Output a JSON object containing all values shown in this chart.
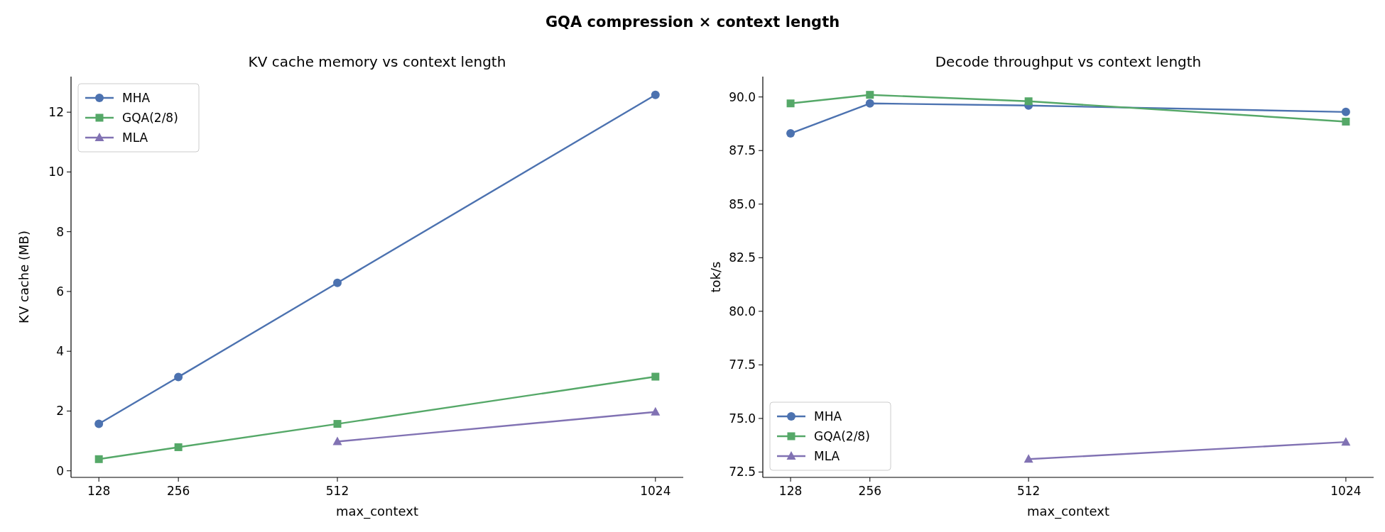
{
  "chart_data": [
    {
      "type": "line",
      "annotations": [
        "GQA compression × context length"
      ],
      "title": "KV cache memory vs context length",
      "xlabel": "max_context",
      "ylabel": "KV cache (MB)",
      "x": [
        128,
        256,
        512,
        1024
      ],
      "xlim": [
        83.2,
        1068.8
      ],
      "xticks": [
        128,
        256,
        512,
        1024
      ],
      "ylim": [
        -0.22,
        13.19
      ],
      "yticks": [
        0,
        2,
        4,
        6,
        8,
        10,
        12
      ],
      "legend": "top left",
      "grid": false,
      "series": [
        {
          "name": "MHA",
          "color": "#4c72b0",
          "marker": "circle",
          "values": [
            1.57,
            3.14,
            6.29,
            12.58
          ]
        },
        {
          "name": "GQA(2/8)",
          "color": "#55a868",
          "marker": "square",
          "values": [
            0.39,
            0.79,
            1.57,
            3.15
          ]
        },
        {
          "name": "MLA",
          "color": "#8172b3",
          "marker": "triangle",
          "values": [
            null,
            null,
            0.98,
            1.97
          ]
        }
      ]
    },
    {
      "type": "line",
      "title": "Decode throughput vs context length",
      "xlabel": "max_context",
      "ylabel": "tok/s",
      "x": [
        128,
        256,
        512,
        1024
      ],
      "xlim": [
        83.2,
        1068.8
      ],
      "xticks": [
        128,
        256,
        512,
        1024
      ],
      "ylim": [
        72.25,
        90.95
      ],
      "yticks": [
        {
          "value": 72.5,
          "label": "72.5"
        },
        {
          "value": 75,
          "label": "75.0"
        },
        {
          "value": 77.5,
          "label": "77.5"
        },
        {
          "value": 80,
          "label": "80.0"
        },
        {
          "value": 82.5,
          "label": "82.5"
        },
        {
          "value": 85,
          "label": "85.0"
        },
        {
          "value": 87.5,
          "label": "87.5"
        },
        {
          "value": 90,
          "label": "90.0"
        }
      ],
      "legend": "bottom left",
      "grid": false,
      "series": [
        {
          "name": "MHA",
          "color": "#4c72b0",
          "marker": "circle",
          "values": [
            88.3,
            89.7,
            89.6,
            89.3
          ]
        },
        {
          "name": "GQA(2/8)",
          "color": "#55a868",
          "marker": "square",
          "values": [
            89.7,
            90.1,
            89.8,
            88.85
          ]
        },
        {
          "name": "MLA",
          "color": "#8172b3",
          "marker": "triangle",
          "values": [
            null,
            null,
            73.1,
            73.9
          ]
        }
      ]
    }
  ]
}
